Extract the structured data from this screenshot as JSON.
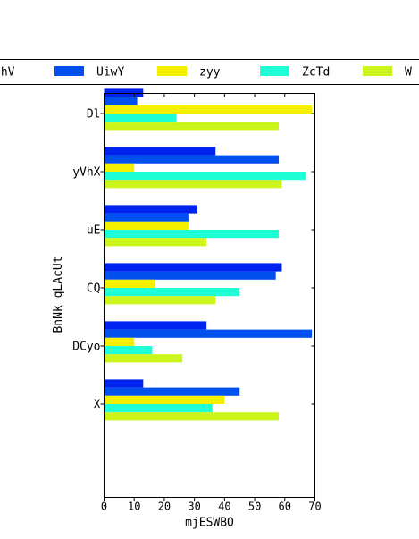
{
  "chart_data": {
    "type": "bar",
    "orientation": "horizontal",
    "xlabel": "mjESWBO",
    "ylabel": "BnNk qLAcUt",
    "xlim": [
      0,
      70
    ],
    "xticks": [
      0,
      10,
      20,
      30,
      40,
      50,
      60,
      70
    ],
    "categories": [
      "Dl",
      "yVhX",
      "uE",
      "CQ",
      "DCyo",
      "X"
    ],
    "legend_position": "top",
    "grid": false,
    "series": [
      {
        "name": "QhV",
        "color": "#0022ee",
        "values": [
          13,
          37,
          31,
          59,
          34,
          13
        ]
      },
      {
        "name": "UiwY",
        "color": "#0050ee",
        "values": [
          11,
          58,
          28,
          57,
          69,
          45
        ]
      },
      {
        "name": "zyy",
        "color": "#f5f000",
        "values": [
          69,
          10,
          28,
          17,
          10,
          40
        ]
      },
      {
        "name": "ZcTd",
        "color": "#1effd6",
        "values": [
          24,
          67,
          58,
          45,
          16,
          36
        ]
      },
      {
        "name": "W",
        "color": "#ccf51c",
        "values": [
          58,
          59,
          34,
          37,
          26,
          58
        ]
      }
    ]
  }
}
